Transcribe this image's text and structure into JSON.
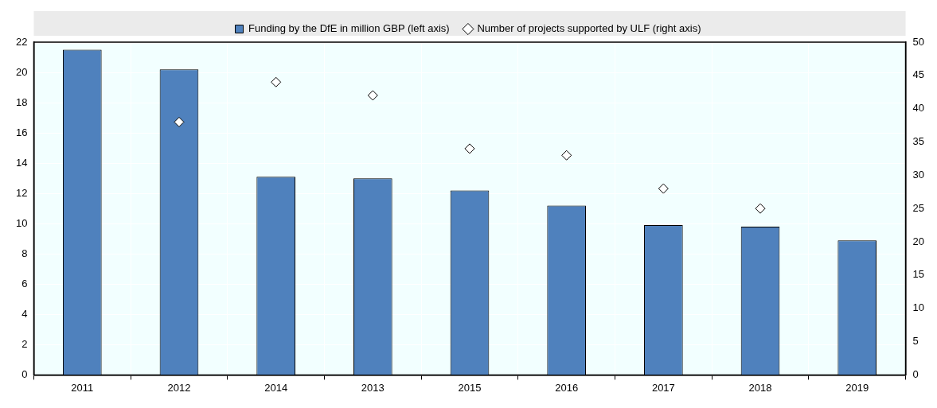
{
  "chart_data": {
    "type": "bar",
    "categories": [
      "2011",
      "2012",
      "2014",
      "2013",
      "2015",
      "2016",
      "2017",
      "2018",
      "2019"
    ],
    "series": [
      {
        "name": "Funding by the DfE in million GBP (left axis)",
        "color": "#4f81bd",
        "values": [
          21.5,
          20.2,
          13.1,
          13.0,
          12.2,
          11.2,
          9.9,
          9.8,
          8.9
        ]
      },
      {
        "name": "Number of projects supported by ULF (right axis)",
        "type": "scatter",
        "axis": "y2",
        "color": "#ffffff",
        "marker": "diamond",
        "values": [
          null,
          38,
          44,
          42,
          34,
          33,
          28,
          25,
          null
        ]
      }
    ],
    "ylim": [
      0,
      22
    ],
    "yticks": [
      0,
      2,
      4,
      6,
      8,
      10,
      12,
      14,
      16,
      18,
      20,
      22
    ],
    "y2lim": [
      0,
      50
    ],
    "y2ticks": [
      0,
      5,
      10,
      15,
      20,
      25,
      30,
      35,
      40,
      45,
      50
    ],
    "grid": true,
    "legend": "top"
  }
}
